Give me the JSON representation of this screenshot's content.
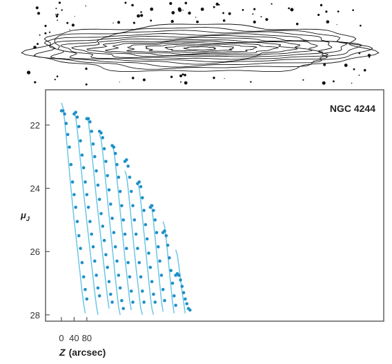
{
  "chart_data": {
    "type": "scatter",
    "annotation": "NGC 4244",
    "xlabel": "Z",
    "xlabel_unit": "(arcsec)",
    "ylabel": "μ",
    "ylabel_sub": "J",
    "xticks": [
      0,
      40,
      80
    ],
    "yticks": [
      22,
      24,
      26,
      28
    ],
    "ylim": [
      28.3,
      21.2
    ],
    "y_inverted": true,
    "grid": false,
    "colors": {
      "points": "#1f8fc6",
      "model": "#6cc6e6",
      "axis": "#555555"
    },
    "series": [
      {
        "offset": 0,
        "points": [
          [
            0,
            21.55
          ],
          [
            5,
            21.55
          ],
          [
            10,
            21.65
          ],
          [
            15,
            21.95
          ],
          [
            20,
            22.3
          ],
          [
            25,
            22.7
          ],
          [
            30,
            23.25
          ],
          [
            35,
            23.8
          ],
          [
            40,
            24.2
          ],
          [
            45,
            24.6
          ],
          [
            50,
            25.05
          ],
          [
            55,
            25.5
          ],
          [
            60,
            25.9
          ],
          [
            65,
            26.35
          ],
          [
            70,
            26.8
          ],
          [
            75,
            27.2
          ],
          [
            80,
            27.5
          ]
        ],
        "model": [
          [
            0,
            21.3
          ],
          [
            5,
            21.45
          ],
          [
            10,
            21.85
          ],
          [
            15,
            22.35
          ],
          [
            20,
            22.9
          ],
          [
            25,
            23.45
          ],
          [
            30,
            24.0
          ],
          [
            35,
            24.5
          ],
          [
            40,
            25.0
          ],
          [
            45,
            25.45
          ],
          [
            50,
            25.9
          ],
          [
            55,
            26.35
          ],
          [
            60,
            26.8
          ],
          [
            65,
            27.25
          ],
          [
            70,
            27.65
          ],
          [
            75,
            27.95
          ]
        ]
      },
      {
        "offset": 40,
        "points": [
          [
            0,
            21.65
          ],
          [
            5,
            21.6
          ],
          [
            10,
            21.75
          ],
          [
            15,
            22.05
          ],
          [
            20,
            22.5
          ],
          [
            25,
            22.95
          ],
          [
            30,
            23.35
          ],
          [
            35,
            23.8
          ],
          [
            40,
            24.2
          ],
          [
            45,
            24.6
          ],
          [
            50,
            25.05
          ],
          [
            55,
            25.45
          ],
          [
            60,
            25.85
          ],
          [
            65,
            26.3
          ],
          [
            70,
            26.75
          ],
          [
            75,
            27.15
          ],
          [
            80,
            27.4
          ]
        ],
        "model": [
          [
            0,
            21.6
          ],
          [
            5,
            21.75
          ],
          [
            10,
            22.15
          ],
          [
            15,
            22.65
          ],
          [
            20,
            23.15
          ],
          [
            25,
            23.65
          ],
          [
            30,
            24.15
          ],
          [
            35,
            24.6
          ],
          [
            40,
            25.05
          ],
          [
            45,
            25.5
          ],
          [
            50,
            25.95
          ],
          [
            55,
            26.4
          ],
          [
            60,
            26.85
          ],
          [
            65,
            27.3
          ],
          [
            70,
            27.7
          ],
          [
            75,
            28.0
          ]
        ]
      },
      {
        "offset": 80,
        "points": [
          [
            0,
            21.8
          ],
          [
            5,
            21.8
          ],
          [
            10,
            21.9
          ],
          [
            15,
            22.2
          ],
          [
            20,
            22.6
          ],
          [
            25,
            23.0
          ],
          [
            30,
            23.45
          ],
          [
            35,
            23.9
          ],
          [
            40,
            24.35
          ],
          [
            45,
            24.8
          ],
          [
            50,
            25.2
          ],
          [
            55,
            25.65
          ],
          [
            60,
            26.1
          ],
          [
            65,
            26.5
          ],
          [
            70,
            26.95
          ],
          [
            75,
            27.35
          ],
          [
            80,
            27.6
          ]
        ],
        "model": [
          [
            0,
            21.75
          ],
          [
            5,
            21.9
          ],
          [
            10,
            22.3
          ],
          [
            15,
            22.8
          ],
          [
            20,
            23.3
          ],
          [
            25,
            23.8
          ],
          [
            30,
            24.3
          ],
          [
            35,
            24.75
          ],
          [
            40,
            25.2
          ],
          [
            45,
            25.65
          ],
          [
            50,
            26.1
          ],
          [
            55,
            26.55
          ],
          [
            60,
            27.0
          ],
          [
            65,
            27.45
          ],
          [
            70,
            27.8
          ]
        ]
      },
      {
        "offset": 120,
        "points": [
          [
            0,
            22.2
          ],
          [
            5,
            22.25
          ],
          [
            10,
            22.4
          ],
          [
            15,
            22.75
          ],
          [
            20,
            23.15
          ],
          [
            25,
            23.6
          ],
          [
            30,
            24.05
          ],
          [
            35,
            24.5
          ],
          [
            40,
            24.95
          ],
          [
            45,
            25.4
          ],
          [
            50,
            25.85
          ],
          [
            55,
            26.3
          ],
          [
            60,
            26.75
          ],
          [
            65,
            27.15
          ],
          [
            70,
            27.55
          ],
          [
            75,
            27.8
          ]
        ],
        "model": [
          [
            0,
            22.3
          ],
          [
            5,
            22.45
          ],
          [
            10,
            22.85
          ],
          [
            15,
            23.35
          ],
          [
            20,
            23.85
          ],
          [
            25,
            24.35
          ],
          [
            30,
            24.85
          ],
          [
            35,
            25.35
          ],
          [
            40,
            25.85
          ],
          [
            45,
            26.35
          ],
          [
            50,
            26.85
          ],
          [
            55,
            27.3
          ],
          [
            60,
            27.75
          ],
          [
            65,
            28.0
          ]
        ]
      },
      {
        "offset": 160,
        "points": [
          [
            0,
            22.65
          ],
          [
            5,
            22.7
          ],
          [
            10,
            22.9
          ],
          [
            15,
            23.25
          ],
          [
            20,
            23.65
          ],
          [
            25,
            24.1
          ],
          [
            30,
            24.55
          ],
          [
            35,
            25.0
          ],
          [
            40,
            25.45
          ],
          [
            45,
            25.9
          ],
          [
            50,
            26.35
          ],
          [
            55,
            26.8
          ],
          [
            60,
            27.25
          ],
          [
            65,
            27.6
          ]
        ],
        "model": [
          [
            0,
            22.65
          ],
          [
            5,
            22.8
          ],
          [
            10,
            23.2
          ],
          [
            15,
            23.7
          ],
          [
            20,
            24.2
          ],
          [
            25,
            24.7
          ],
          [
            30,
            25.2
          ],
          [
            35,
            25.7
          ],
          [
            40,
            26.2
          ],
          [
            45,
            26.65
          ],
          [
            50,
            27.1
          ],
          [
            55,
            27.55
          ],
          [
            60,
            27.85
          ]
        ]
      },
      {
        "offset": 200,
        "points": [
          [
            0,
            23.15
          ],
          [
            5,
            23.1
          ],
          [
            10,
            23.3
          ],
          [
            15,
            23.65
          ],
          [
            20,
            24.1
          ],
          [
            25,
            24.55
          ],
          [
            30,
            25.0
          ],
          [
            35,
            25.45
          ],
          [
            40,
            25.9
          ],
          [
            45,
            26.35
          ],
          [
            50,
            26.8
          ],
          [
            55,
            27.25
          ],
          [
            60,
            27.6
          ]
        ],
        "model": [
          [
            0,
            23.45
          ],
          [
            5,
            23.6
          ],
          [
            10,
            24.0
          ],
          [
            15,
            24.5
          ],
          [
            20,
            25.0
          ],
          [
            25,
            25.5
          ],
          [
            30,
            26.0
          ],
          [
            35,
            26.5
          ],
          [
            40,
            26.95
          ],
          [
            45,
            27.4
          ],
          [
            50,
            27.8
          ],
          [
            55,
            28.0
          ]
        ]
      },
      {
        "offset": 240,
        "points": [
          [
            0,
            23.85
          ],
          [
            5,
            23.8
          ],
          [
            10,
            23.95
          ],
          [
            15,
            24.3
          ],
          [
            20,
            24.7
          ],
          [
            25,
            25.15
          ],
          [
            30,
            25.6
          ],
          [
            35,
            26.05
          ],
          [
            40,
            26.5
          ],
          [
            45,
            26.95
          ],
          [
            50,
            27.35
          ],
          [
            55,
            27.6
          ]
        ],
        "model": [
          [
            0,
            23.85
          ],
          [
            5,
            24.0
          ],
          [
            10,
            24.4
          ],
          [
            15,
            24.9
          ],
          [
            20,
            25.4
          ],
          [
            25,
            25.9
          ],
          [
            30,
            26.4
          ],
          [
            35,
            26.9
          ],
          [
            40,
            27.4
          ],
          [
            45,
            27.8
          ],
          [
            50,
            28.0
          ]
        ]
      },
      {
        "offset": 280,
        "points": [
          [
            0,
            24.6
          ],
          [
            5,
            24.55
          ],
          [
            10,
            24.7
          ],
          [
            15,
            25.0
          ],
          [
            20,
            25.4
          ],
          [
            25,
            25.85
          ],
          [
            30,
            26.3
          ],
          [
            35,
            26.75
          ],
          [
            40,
            27.2
          ],
          [
            45,
            27.55
          ]
        ],
        "model": [
          [
            0,
            24.5
          ],
          [
            5,
            24.65
          ],
          [
            10,
            25.05
          ],
          [
            15,
            25.55
          ],
          [
            20,
            26.05
          ],
          [
            25,
            26.55
          ],
          [
            30,
            27.05
          ],
          [
            35,
            27.55
          ],
          [
            40,
            27.9
          ]
        ]
      },
      {
        "offset": 320,
        "points": [
          [
            0,
            25.4
          ],
          [
            5,
            25.35
          ],
          [
            10,
            25.5
          ],
          [
            15,
            25.8
          ],
          [
            20,
            26.2
          ],
          [
            25,
            26.6
          ],
          [
            30,
            27.0
          ],
          [
            35,
            27.4
          ],
          [
            40,
            27.7
          ]
        ],
        "model": [
          [
            0,
            25.05
          ],
          [
            5,
            25.2
          ],
          [
            10,
            25.6
          ],
          [
            15,
            26.1
          ],
          [
            20,
            26.6
          ],
          [
            25,
            27.1
          ],
          [
            30,
            27.6
          ],
          [
            35,
            27.95
          ]
        ]
      },
      {
        "offset": 360,
        "points": [
          [
            0,
            26.75
          ],
          [
            5,
            26.7
          ],
          [
            10,
            26.75
          ],
          [
            15,
            26.9
          ],
          [
            20,
            27.1
          ],
          [
            25,
            27.3
          ],
          [
            30,
            27.5
          ],
          [
            35,
            27.65
          ],
          [
            40,
            27.8
          ],
          [
            45,
            27.85
          ]
        ],
        "model": [
          [
            0,
            25.95
          ],
          [
            5,
            26.1
          ],
          [
            10,
            26.45
          ],
          [
            15,
            26.85
          ],
          [
            20,
            27.25
          ],
          [
            25,
            27.6
          ],
          [
            30,
            27.95
          ]
        ]
      }
    ]
  },
  "contour": {
    "colors": {
      "line": "#111111"
    }
  }
}
